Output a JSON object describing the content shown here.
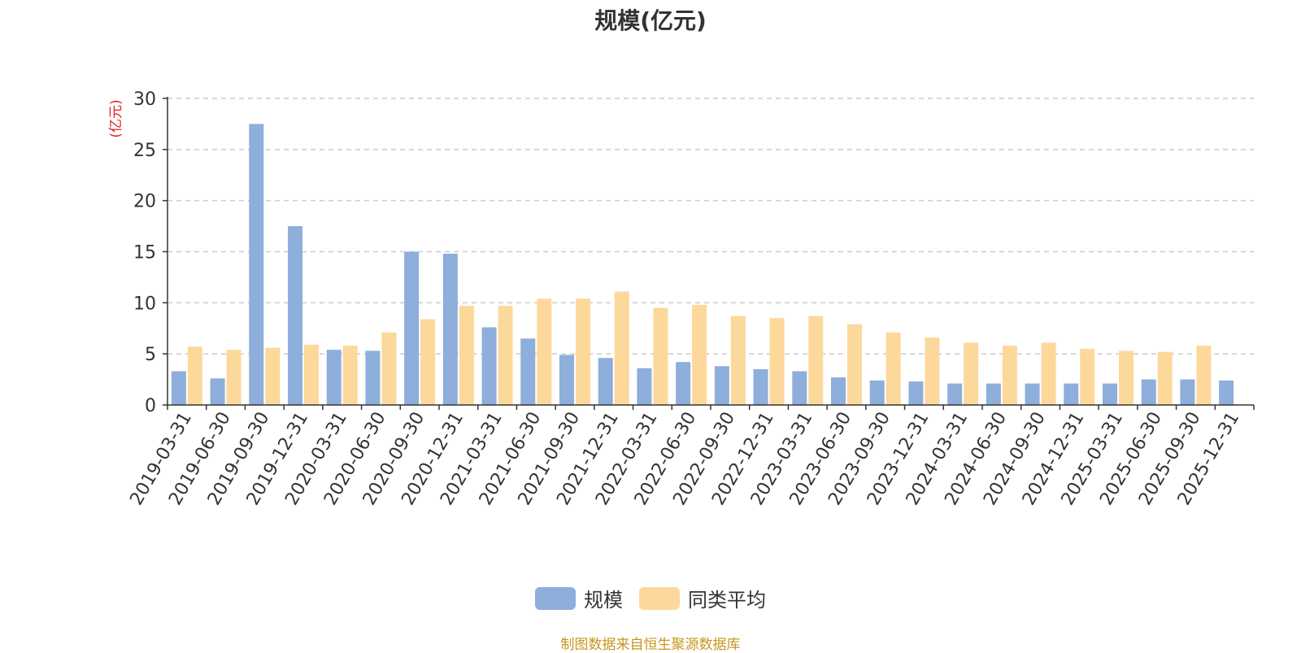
{
  "chart_data": {
    "type": "bar",
    "title": "规模(亿元)",
    "ylabel": "(亿元)",
    "xlabel": "",
    "ylim": [
      0,
      30
    ],
    "yticks": [
      0,
      5,
      10,
      15,
      20,
      25,
      30
    ],
    "grid": true,
    "legend_position": "bottom",
    "categories": [
      "2019-03-31",
      "2019-06-30",
      "2019-09-30",
      "2019-12-31",
      "2020-03-31",
      "2020-06-30",
      "2020-09-30",
      "2020-12-31",
      "2021-03-31",
      "2021-06-30",
      "2021-09-30",
      "2021-12-31",
      "2022-03-31",
      "2022-06-30",
      "2022-09-30",
      "2022-12-31",
      "2023-03-31",
      "2023-06-30",
      "2023-09-30",
      "2023-12-31",
      "2024-03-31",
      "2024-06-30",
      "2024-09-30",
      "2024-12-31",
      "2025-03-31",
      "2025-06-30",
      "2025-09-30",
      "2025-12-31"
    ],
    "series": [
      {
        "name": "规模",
        "color": "#8eaedb",
        "values": [
          3.3,
          2.6,
          27.5,
          17.5,
          5.4,
          5.3,
          15.0,
          14.8,
          7.6,
          6.5,
          4.9,
          4.6,
          3.6,
          4.2,
          3.8,
          3.5,
          3.3,
          2.7,
          2.4,
          2.3,
          2.1,
          2.1,
          2.1,
          2.1,
          2.1,
          2.5,
          2.5,
          2.4
        ]
      },
      {
        "name": "同类平均",
        "color": "#fdd89b",
        "values": [
          5.7,
          5.4,
          5.6,
          5.9,
          5.8,
          7.1,
          8.4,
          9.7,
          9.7,
          10.4,
          10.4,
          11.1,
          9.5,
          9.8,
          8.7,
          8.5,
          8.7,
          7.9,
          7.1,
          6.6,
          6.1,
          5.8,
          6.1,
          5.5,
          5.3,
          5.2,
          5.8,
          null
        ]
      }
    ]
  },
  "source_note": "制图数据来自恒生聚源数据库"
}
